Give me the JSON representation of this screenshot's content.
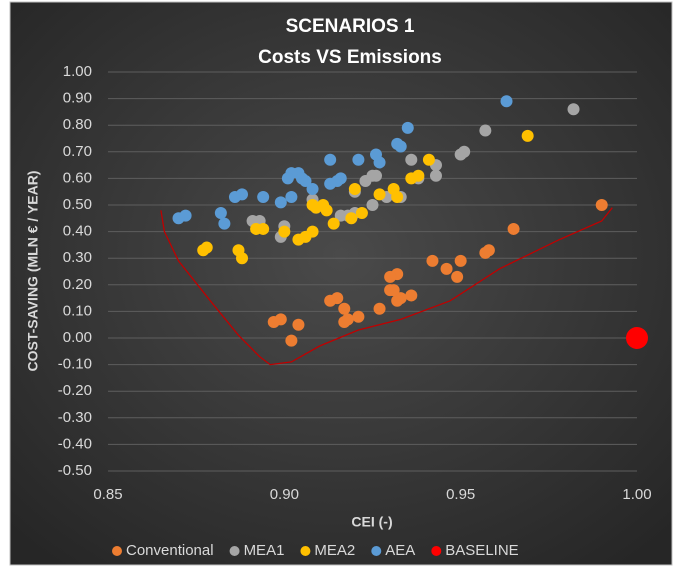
{
  "chart_data": {
    "type": "scatter",
    "title": "SCENARIOS 1",
    "subtitle": "Costs VS Emissions",
    "x_label": "CEI (-)",
    "y_label": "COST-SAVING (MLN € / YEAR)",
    "xlim": [
      0.85,
      1.0
    ],
    "ylim": [
      -0.5,
      1.0
    ],
    "xticks": [
      0.85,
      {
        "value": 0.9,
        "label": "0.90"
      },
      0.95,
      {
        "value": 1.0,
        "label": "1.00"
      }
    ],
    "yticks": [
      {
        "value": -0.5,
        "label": "-0.50"
      },
      {
        "value": -0.4,
        "label": "-0.40"
      },
      {
        "value": -0.3,
        "label": "-0.30"
      },
      {
        "value": -0.2,
        "label": "-0.20"
      },
      {
        "value": -0.1,
        "label": "-0.10"
      },
      {
        "value": 0.0,
        "label": "0.00"
      },
      {
        "value": 0.1,
        "label": "0.10"
      },
      {
        "value": 0.2,
        "label": "0.20"
      },
      {
        "value": 0.3,
        "label": "0.30"
      },
      {
        "value": 0.4,
        "label": "0.40"
      },
      {
        "value": 0.5,
        "label": "0.50"
      },
      {
        "value": 0.6,
        "label": "0.60"
      },
      {
        "value": 0.7,
        "label": "0.70"
      },
      {
        "value": 0.8,
        "label": "0.80"
      },
      {
        "value": 0.9,
        "label": "0.90"
      },
      {
        "value": 1.0,
        "label": "1.00"
      }
    ],
    "grid": true,
    "legend": "bottom",
    "series": [
      {
        "name": "Conventional",
        "color": "#ed7d31",
        "x": [
          0.99,
          0.965,
          0.958,
          0.957,
          0.95,
          0.949,
          0.946,
          0.942,
          0.936,
          0.933,
          0.932,
          0.932,
          0.93,
          0.93,
          0.931,
          0.927,
          0.921,
          0.917,
          0.918,
          0.917,
          0.915,
          0.913,
          0.904,
          0.899,
          0.897,
          0.902
        ],
        "values": [
          0.5,
          0.41,
          0.33,
          0.32,
          0.29,
          0.23,
          0.26,
          0.29,
          0.16,
          0.15,
          0.14,
          0.24,
          0.23,
          0.18,
          0.18,
          0.11,
          0.08,
          0.06,
          0.07,
          0.11,
          0.15,
          0.14,
          0.05,
          0.07,
          0.06,
          -0.01
        ]
      },
      {
        "name": "MEA1",
        "color": "#a5a5a5",
        "x": [
          0.982,
          0.957,
          0.951,
          0.95,
          0.943,
          0.943,
          0.936,
          0.938,
          0.933,
          0.929,
          0.926,
          0.925,
          0.923,
          0.925,
          0.92,
          0.92,
          0.918,
          0.916,
          0.909,
          0.908,
          0.9,
          0.899,
          0.893,
          0.891
        ],
        "values": [
          0.86,
          0.78,
          0.7,
          0.69,
          0.65,
          0.61,
          0.67,
          0.6,
          0.53,
          0.53,
          0.61,
          0.5,
          0.59,
          0.61,
          0.55,
          0.47,
          0.46,
          0.46,
          0.49,
          0.52,
          0.42,
          0.38,
          0.44,
          0.44
        ]
      },
      {
        "name": "MEA2",
        "color": "#ffc000",
        "x": [
          0.969,
          0.941,
          0.938,
          0.936,
          0.932,
          0.931,
          0.927,
          0.92,
          0.922,
          0.919,
          0.914,
          0.912,
          0.911,
          0.909,
          0.908,
          0.908,
          0.906,
          0.904,
          0.9,
          0.894,
          0.892,
          0.887,
          0.888,
          0.878,
          0.877
        ],
        "values": [
          0.76,
          0.67,
          0.61,
          0.6,
          0.53,
          0.56,
          0.54,
          0.56,
          0.47,
          0.45,
          0.43,
          0.48,
          0.5,
          0.49,
          0.5,
          0.4,
          0.38,
          0.37,
          0.4,
          0.41,
          0.41,
          0.33,
          0.3,
          0.34,
          0.33
        ]
      },
      {
        "name": "AEA",
        "color": "#5b9bd5",
        "x": [
          0.963,
          0.935,
          0.933,
          0.932,
          0.927,
          0.926,
          0.921,
          0.916,
          0.913,
          0.915,
          0.913,
          0.908,
          0.906,
          0.905,
          0.904,
          0.902,
          0.901,
          0.902,
          0.899,
          0.894,
          0.888,
          0.886,
          0.883,
          0.882,
          0.872,
          0.87
        ],
        "values": [
          0.89,
          0.79,
          0.72,
          0.73,
          0.66,
          0.69,
          0.67,
          0.6,
          0.67,
          0.59,
          0.58,
          0.56,
          0.59,
          0.6,
          0.62,
          0.62,
          0.6,
          0.53,
          0.51,
          0.53,
          0.54,
          0.53,
          0.43,
          0.47,
          0.46,
          0.45
        ]
      },
      {
        "name": "BASELINE",
        "color": "#ff0000",
        "x": [
          1.0
        ],
        "values": [
          0.0
        ]
      }
    ],
    "lines": [
      {
        "color": "#c00000",
        "x": [
          0.865,
          0.866,
          0.87,
          0.879,
          0.887,
          0.893,
          0.896,
          0.902,
          0.91,
          0.921,
          0.933,
          0.947,
          0.961,
          0.978,
          0.99,
          0.993
        ],
        "values": [
          0.48,
          0.4,
          0.29,
          0.14,
          0.01,
          -0.07,
          -0.1,
          -0.09,
          -0.03,
          0.03,
          0.07,
          0.14,
          0.26,
          0.37,
          0.44,
          0.49
        ]
      }
    ]
  }
}
